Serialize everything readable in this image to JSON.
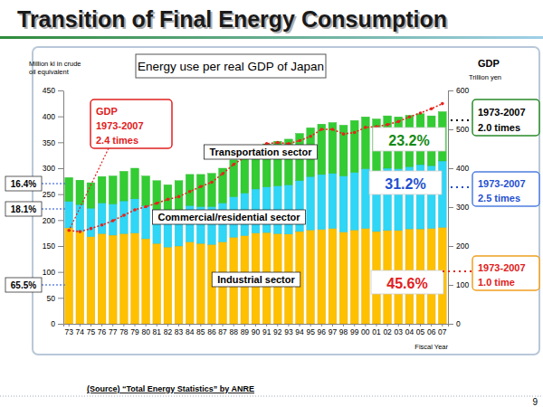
{
  "chart_data": {
    "type": "bar",
    "stacked": true,
    "grid": false,
    "title": "Transition of Final Energy Consumption",
    "subtitle": "Energy use per real GDP of Japan",
    "y_label": [
      "Million kl in crude",
      "oil equivalent"
    ],
    "y2_title": "GDP",
    "y2_label": "Trillion yen",
    "x_label": "Fiscal Year",
    "source": "(Source) “Total Energy Statistics” by ANRE",
    "page": "9",
    "categories": [
      "73",
      "74",
      "75",
      "76",
      "77",
      "78",
      "79",
      "80",
      "81",
      "82",
      "83",
      "84",
      "85",
      "86",
      "87",
      "88",
      "89",
      "90",
      "91",
      "92",
      "93",
      "94",
      "95",
      "96",
      "97",
      "98",
      "99",
      "00",
      "01",
      "02",
      "03",
      "04",
      "05",
      "06",
      "07"
    ],
    "series": [
      {
        "name": "Industrial sector",
        "color": "#ffc000",
        "values": [
          185,
          178,
          168,
          174,
          171,
          174,
          175,
          164,
          155,
          148,
          150,
          158,
          155,
          153,
          158,
          167,
          170,
          175,
          176,
          174,
          173,
          178,
          181,
          182,
          184,
          177,
          181,
          184,
          178,
          180,
          180,
          183,
          183,
          184,
          186
        ]
      },
      {
        "name": "Commercial/residential sector",
        "color": "#2fd6f5",
        "values": [
          51,
          52,
          55,
          59,
          60,
          63,
          66,
          64,
          65,
          63,
          67,
          70,
          71,
          73,
          75,
          78,
          82,
          85,
          88,
          92,
          95,
          98,
          103,
          106,
          106,
          108,
          111,
          115,
          116,
          120,
          119,
          120,
          124,
          121,
          128
        ]
      },
      {
        "name": "Transportation sector",
        "color": "#33cc33",
        "values": [
          46,
          47,
          49,
          51,
          54,
          57,
          59,
          57,
          56,
          57,
          59,
          60,
          62,
          64,
          67,
          71,
          75,
          80,
          83,
          86,
          88,
          91,
          94,
          97,
          98,
          98,
          100,
          100,
          101,
          101,
          100,
          99,
          98,
          96,
          95
        ]
      },
      {
        "name": "GDP",
        "type": "line",
        "axis": "y2",
        "color": "#e8231c",
        "marker": "circle",
        "line_style": "dotted",
        "values": [
          240,
          237,
          245,
          254,
          265,
          279,
          293,
          301,
          310,
          320,
          327,
          340,
          353,
          364,
          386,
          410,
          428,
          452,
          463,
          466,
          463,
          471,
          482,
          500,
          500,
          488,
          492,
          505,
          507,
          512,
          520,
          532,
          542,
          553,
          566
        ]
      }
    ],
    "ylim": [
      0,
      450
    ],
    "yticks": [
      0,
      50,
      100,
      150,
      200,
      250,
      300,
      350,
      400,
      450
    ],
    "y2lim": [
      0,
      600
    ],
    "y2ticks": [
      0,
      100,
      200,
      300,
      400,
      500,
      600
    ],
    "annotations": [
      [
        "1973-2007",
        "2.4 times"
      ],
      "23.2%",
      "31.2%",
      "45.6%",
      "16.4%",
      "18.1%",
      "65.5%",
      [
        "1973-2007",
        "2.0 times"
      ],
      [
        "1973-2007",
        "2.5 times"
      ],
      [
        "1973-2007",
        "1.0 time"
      ]
    ]
  }
}
